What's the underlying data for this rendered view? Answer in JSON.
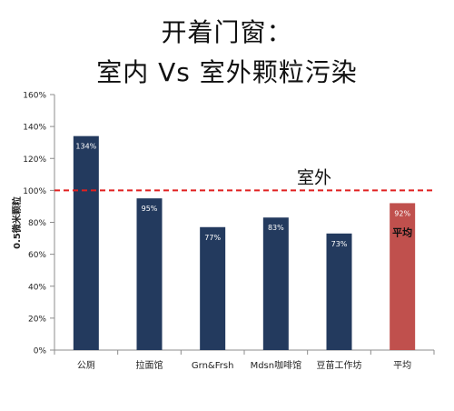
{
  "chart_data": {
    "type": "bar",
    "title": [
      "开着门窗：",
      "室内 Vs 室外颗粒污染"
    ],
    "ylabel": "0.5微米颗粒",
    "xlabel": "",
    "categories": [
      "公厕",
      "拉面馆",
      "Grn&Frsh",
      "Mdsn咖啡馆",
      "豆苗工作坊",
      "平均"
    ],
    "values": [
      134,
      95,
      77,
      83,
      73,
      92
    ],
    "value_labels": [
      "134%",
      "95%",
      "77%",
      "83%",
      "73%",
      "92%"
    ],
    "bar_colors": [
      "#233a5e",
      "#233a5e",
      "#233a5e",
      "#233a5e",
      "#233a5e",
      "#c0504d"
    ],
    "ylim": [
      0,
      160
    ],
    "yticks": [
      0,
      20,
      40,
      60,
      80,
      100,
      120,
      140,
      160
    ],
    "ytick_labels": [
      "0%",
      "20%",
      "40%",
      "60%",
      "80%",
      "100%",
      "120%",
      "140%",
      "160%"
    ],
    "reference_line": {
      "value": 100,
      "label": "室外",
      "color": "#e02020",
      "style": "dashed"
    },
    "annotations": [
      {
        "category": "平均",
        "text": "平均"
      }
    ],
    "grid": false,
    "legend": "none"
  }
}
